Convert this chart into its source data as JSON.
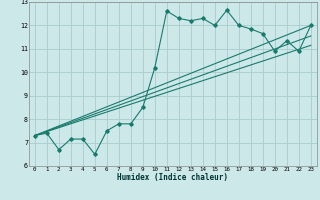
{
  "xlabel": "Humidex (Indice chaleur)",
  "xlim": [
    -0.5,
    23.5
  ],
  "ylim": [
    6,
    13
  ],
  "xticks": [
    0,
    1,
    2,
    3,
    4,
    5,
    6,
    7,
    8,
    9,
    10,
    11,
    12,
    13,
    14,
    15,
    16,
    17,
    18,
    19,
    20,
    21,
    22,
    23
  ],
  "yticks": [
    6,
    7,
    8,
    9,
    10,
    11,
    12,
    13
  ],
  "bg_color": "#cce8e8",
  "grid_color": "#aacccc",
  "line_color": "#1a7a6e",
  "line1_x": [
    0,
    1,
    2,
    3,
    4,
    5,
    6,
    7,
    8,
    9,
    10,
    11,
    12,
    13,
    14,
    15,
    16,
    17,
    18,
    19,
    20,
    21,
    22,
    23
  ],
  "line1_y": [
    7.3,
    7.4,
    6.7,
    7.15,
    7.15,
    6.5,
    7.5,
    7.8,
    7.8,
    8.5,
    10.2,
    12.62,
    12.3,
    12.2,
    12.3,
    12.0,
    12.65,
    12.0,
    11.85,
    11.65,
    10.9,
    11.35,
    10.9,
    12.0
  ],
  "line2_x": [
    0,
    23
  ],
  "line2_y": [
    7.3,
    12.0
  ],
  "line3_x": [
    0,
    23
  ],
  "line3_y": [
    7.3,
    11.15
  ],
  "line4_x": [
    0,
    23
  ],
  "line4_y": [
    7.3,
    11.55
  ]
}
